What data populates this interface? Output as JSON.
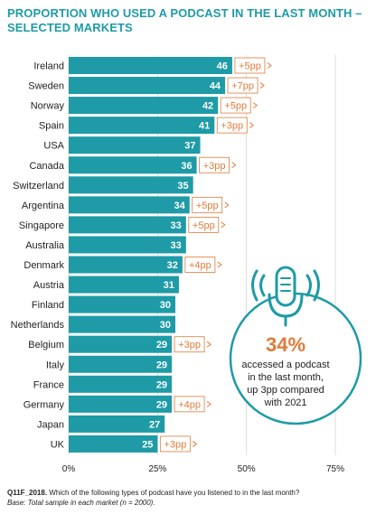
{
  "title": "PROPORTION WHO USED A PODCAST IN THE LAST MONTH – SELECTED MARKETS",
  "chart_data": {
    "type": "bar",
    "orientation": "horizontal",
    "categories": [
      "Ireland",
      "Sweden",
      "Norway",
      "Spain",
      "USA",
      "Canada",
      "Switzerland",
      "Argentina",
      "Singapore",
      "Australia",
      "Denmark",
      "Austria",
      "Finland",
      "Netherlands",
      "Belgium",
      "Italy",
      "France",
      "Germany",
      "Japan",
      "UK"
    ],
    "values": [
      46,
      44,
      42,
      41,
      37,
      36,
      35,
      34,
      33,
      33,
      32,
      31,
      30,
      30,
      29,
      29,
      29,
      29,
      27,
      25
    ],
    "changes": [
      "+5pp",
      "+7pp",
      "+5pp",
      "+3pp",
      "",
      "+3pp",
      "",
      "+5pp",
      "+5pp",
      "",
      "+4pp",
      "",
      "",
      "",
      "+3pp",
      "",
      "",
      "+4pp",
      "",
      "+3pp"
    ],
    "xlim": [
      0,
      75
    ],
    "xticks": [
      "0%",
      "25%",
      "50%",
      "75%"
    ],
    "bar_color": "#1e9ba6",
    "change_color": "#e07b39",
    "gridlines": true
  },
  "callout": {
    "big": "34%",
    "lines": [
      "accessed a podcast",
      "in the last month,",
      "up 3pp compared",
      "with 2021"
    ],
    "icon": "microphone-icon",
    "ring_color": "#1e9ba6"
  },
  "footer": {
    "question": "Q11F_2018.",
    "question_text": "Which of the following types of podcast have you listened to in the last month?",
    "base": "Base: Total sample in each market (n = 2000)."
  }
}
